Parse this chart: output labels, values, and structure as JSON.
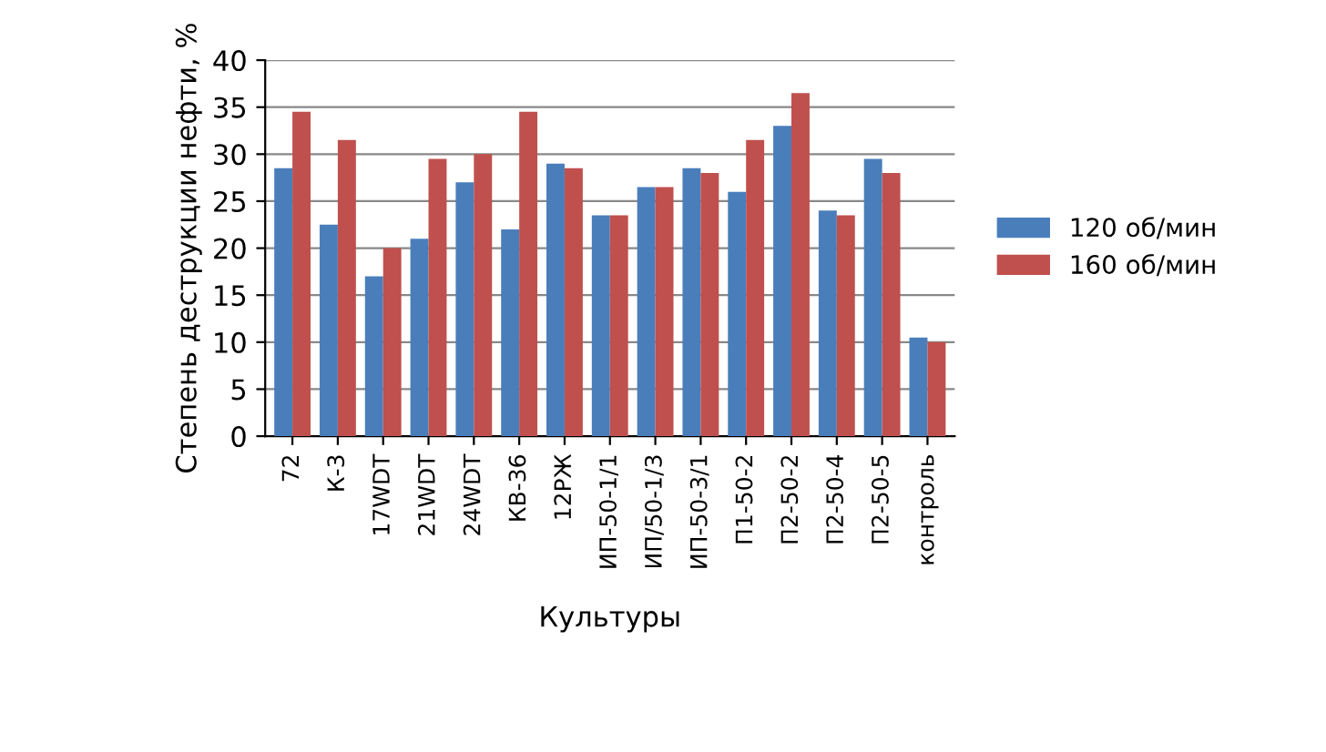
{
  "chart_data": {
    "type": "bar",
    "xlabel": "Культуры",
    "ylabel": "Степень деструкции нефти, %",
    "categories": [
      "72",
      "К-3",
      "17WDT",
      "21WDT",
      "24WDT",
      "КВ-36",
      "12РЖ",
      "ИП-50-1/1",
      "ИП/50-1/3",
      "ИП-50-3/1",
      "П1-50-2",
      "П2-50-2",
      "П2-50-4",
      "П2-50-5",
      "контроль"
    ],
    "series": [
      {
        "name": "120 об/мин",
        "color": "#4a7ebb",
        "values": [
          28.5,
          22.5,
          17,
          21,
          27,
          22,
          29,
          23.5,
          26.5,
          28.5,
          26,
          33,
          24,
          29.5,
          10.5
        ]
      },
      {
        "name": "160 об/мин",
        "color": "#c0504d",
        "values": [
          34.5,
          31.5,
          20,
          29.5,
          30,
          34.5,
          28.5,
          23.5,
          26.5,
          28,
          31.5,
          36.5,
          23.5,
          28,
          10
        ]
      }
    ],
    "ylim": [
      0,
      40
    ],
    "yticks": [
      0,
      5,
      10,
      15,
      20,
      25,
      30,
      35,
      40
    ],
    "grid": "y",
    "legend": "right"
  }
}
